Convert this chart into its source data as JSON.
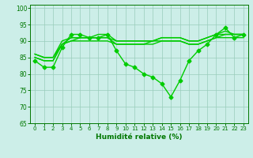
{
  "line1": {
    "x": [
      0,
      1,
      2,
      3,
      4,
      5,
      6,
      7,
      8,
      9,
      10,
      11,
      12,
      13,
      14,
      15,
      16,
      17,
      18,
      19,
      20,
      21,
      22,
      23
    ],
    "y": [
      84,
      82,
      82,
      88,
      92,
      92,
      91,
      91,
      92,
      87,
      83,
      82,
      80,
      79,
      77,
      73,
      78,
      84,
      87,
      89,
      92,
      94,
      91,
      92
    ],
    "color": "#00cc00",
    "marker": "D",
    "markersize": 2.5,
    "linewidth": 1.0
  },
  "line2": {
    "x": [
      0,
      1,
      2,
      3,
      4,
      5,
      6,
      7,
      8,
      9,
      10,
      11,
      12,
      13,
      14,
      15,
      16,
      17,
      18,
      19,
      20,
      21,
      22,
      23
    ],
    "y": [
      85,
      84,
      84,
      89,
      90,
      90,
      90,
      90,
      90,
      89,
      89,
      89,
      89,
      89,
      90,
      90,
      90,
      89,
      89,
      90,
      91,
      91,
      91,
      91
    ],
    "color": "#00cc00",
    "linewidth": 1.0
  },
  "line3": {
    "x": [
      0,
      1,
      2,
      3,
      4,
      5,
      6,
      7,
      8,
      9,
      10,
      11,
      12,
      13,
      14,
      15,
      16,
      17,
      18,
      19,
      20,
      21,
      22,
      23
    ],
    "y": [
      85,
      84,
      84,
      89,
      90,
      91,
      91,
      91,
      91,
      89,
      89,
      89,
      89,
      90,
      90,
      90,
      90,
      89,
      89,
      90,
      91,
      92,
      92,
      92
    ],
    "color": "#00cc00",
    "linewidth": 1.0
  },
  "line4": {
    "x": [
      0,
      1,
      2,
      3,
      4,
      5,
      6,
      7,
      8,
      9,
      10,
      11,
      12,
      13,
      14,
      15,
      16,
      17,
      18,
      19,
      20,
      21,
      22,
      23
    ],
    "y": [
      86,
      85,
      85,
      89,
      91,
      91,
      91,
      91,
      91,
      90,
      90,
      90,
      90,
      90,
      91,
      91,
      91,
      90,
      90,
      91,
      92,
      92,
      92,
      92
    ],
    "color": "#00cc00",
    "linewidth": 1.0
  },
  "line5": {
    "x": [
      0,
      1,
      2,
      3,
      4,
      5,
      6,
      7,
      8,
      9,
      10,
      11,
      12,
      13,
      14,
      15,
      16,
      17,
      18,
      19,
      20,
      21,
      22,
      23
    ],
    "y": [
      86,
      85,
      85,
      90,
      91,
      91,
      91,
      92,
      92,
      90,
      90,
      90,
      90,
      90,
      91,
      91,
      91,
      90,
      90,
      91,
      92,
      93,
      92,
      92
    ],
    "color": "#00cc00",
    "linewidth": 1.0
  },
  "xlabel": "Humidité relative (%)",
  "xlim": [
    -0.5,
    23.5
  ],
  "ylim": [
    65,
    101
  ],
  "yticks": [
    65,
    70,
    75,
    80,
    85,
    90,
    95,
    100
  ],
  "xticks": [
    0,
    1,
    2,
    3,
    4,
    5,
    6,
    7,
    8,
    9,
    10,
    11,
    12,
    13,
    14,
    15,
    16,
    17,
    18,
    19,
    20,
    21,
    22,
    23
  ],
  "background_color": "#cceee8",
  "grid_color": "#99ccbb",
  "tick_color": "#007700",
  "label_color": "#007700"
}
